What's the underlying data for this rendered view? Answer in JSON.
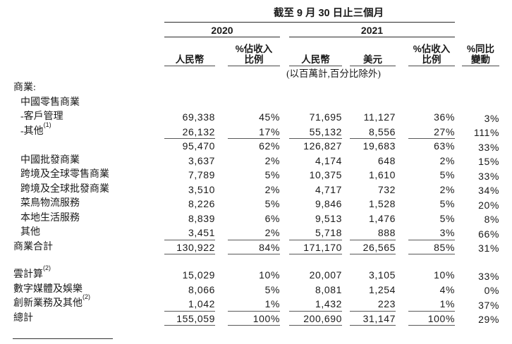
{
  "colors": {
    "background": "#ffffff",
    "text": "#1a1a1a",
    "rule_dark": "#2a2a2a",
    "rule_light": "#595959"
  },
  "header": {
    "period_title": "截至 9 月 30 日止三個月",
    "years": [
      "2020",
      "2021"
    ],
    "columns": [
      {
        "line1": "",
        "line2": "人民幣"
      },
      {
        "line1": "%佔收入",
        "line2": "比例"
      },
      {
        "line1": "",
        "line2": "人民幣"
      },
      {
        "line1": "",
        "line2": "美元"
      },
      {
        "line1": "%佔收入",
        "line2": "比例"
      },
      {
        "line1": "%同比",
        "line2": "變動"
      }
    ],
    "units_note": "(以百萬計,百分比除外)"
  },
  "table": {
    "rows": [
      {
        "label": "商業:",
        "indent": 0,
        "values": [
          "",
          "",
          "",
          "",
          "",
          ""
        ]
      },
      {
        "label": "中國零售商業",
        "indent": 1,
        "values": [
          "",
          "",
          "",
          "",
          "",
          ""
        ]
      },
      {
        "label": "-客戶管理",
        "indent": 1,
        "values": [
          "69,338",
          "45%",
          "71,695",
          "11,127",
          "36%",
          "3%"
        ]
      },
      {
        "label": "-其他",
        "sup": "(1)",
        "indent": 1,
        "rule_below": true,
        "values": [
          "26,132",
          "17%",
          "55,132",
          "8,556",
          "27%",
          "111%"
        ]
      },
      {
        "label": "",
        "indent": 1,
        "values": [
          "95,470",
          "62%",
          "126,827",
          "19,683",
          "63%",
          "33%"
        ]
      },
      {
        "label": "中國批發商業",
        "indent": 1,
        "values": [
          "3,637",
          "2%",
          "4,174",
          "648",
          "2%",
          "15%"
        ]
      },
      {
        "label": "跨境及全球零售商業",
        "indent": 1,
        "values": [
          "7,789",
          "5%",
          "10,375",
          "1,610",
          "5%",
          "33%"
        ]
      },
      {
        "label": "跨境及全球批發商業",
        "indent": 1,
        "values": [
          "3,510",
          "2%",
          "4,717",
          "732",
          "2%",
          "34%"
        ]
      },
      {
        "label": "菜鳥物流服務",
        "indent": 1,
        "values": [
          "8,226",
          "5%",
          "9,846",
          "1,528",
          "5%",
          "20%"
        ]
      },
      {
        "label": "本地生活服務",
        "indent": 1,
        "values": [
          "8,839",
          "6%",
          "9,513",
          "1,476",
          "5%",
          "8%"
        ]
      },
      {
        "label": "其他",
        "indent": 1,
        "rule_below": true,
        "values": [
          "3,451",
          "2%",
          "5,718",
          "888",
          "3%",
          "66%"
        ]
      },
      {
        "label": "商業合計",
        "indent": 0,
        "rule_below": true,
        "values": [
          "130,922",
          "84%",
          "171,170",
          "26,565",
          "85%",
          "31%"
        ]
      },
      {
        "label": "雲計算",
        "sup": "(2)",
        "indent": 0,
        "gap_before": true,
        "values": [
          "15,029",
          "10%",
          "20,007",
          "3,105",
          "10%",
          "33%"
        ]
      },
      {
        "label": "數字媒體及娛樂",
        "indent": 0,
        "values": [
          "8,066",
          "5%",
          "8,081",
          "1,254",
          "4%",
          "0%"
        ]
      },
      {
        "label": "創新業務及其他",
        "sup": "(2)",
        "indent": 0,
        "rule_below": true,
        "values": [
          "1,042",
          "1%",
          "1,432",
          "223",
          "1%",
          "37%"
        ]
      },
      {
        "label": "總計",
        "indent": 0,
        "rule_below": true,
        "values": [
          "155,059",
          "100%",
          "200,690",
          "31,147",
          "100%",
          "29%"
        ]
      }
    ]
  }
}
